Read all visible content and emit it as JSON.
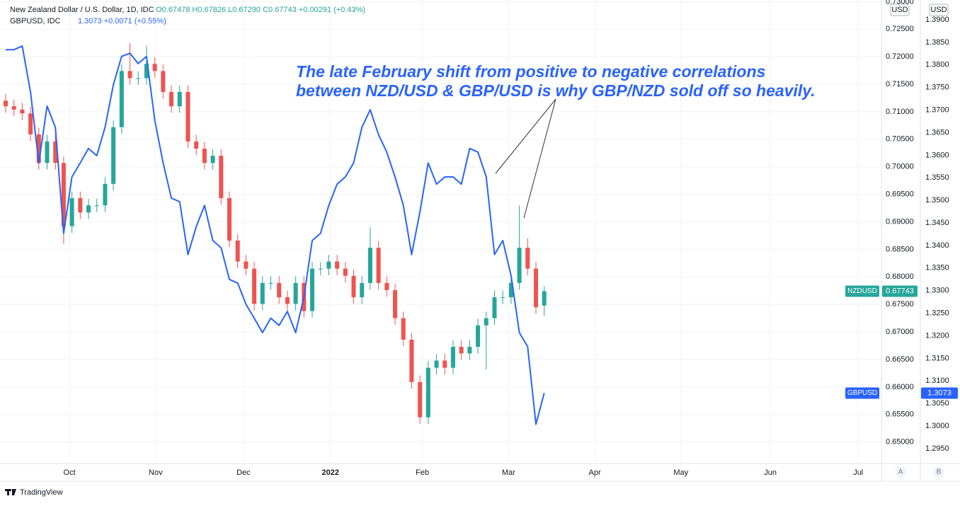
{
  "chart_data": {
    "type": "candlestick",
    "legend": {
      "title": "New Zealand Dollar / U.S. Dollar, 1D, IDC",
      "ohlc": "O0.67478 H0.67826 L0.67290 C0.67743 +0.00291 (+0.43%)",
      "second": "GBPUSD, IDC",
      "second_values": "1.3073 +0.0071 (+0.55%)"
    },
    "annotation": [
      "The late February shift from positive to negative correlations",
      "between NZD/USD & GBP/USD is why GBP/NZD sold off so heavily."
    ],
    "axis_units": [
      "USD",
      "USD"
    ],
    "scale_buttons": [
      "A",
      "B"
    ],
    "brand": "TradingView",
    "xlim": [
      0,
      105.7
    ],
    "xticks": [
      {
        "value": 7.7,
        "label": "Oct"
      },
      {
        "value": 18.1,
        "label": "Nov"
      },
      {
        "value": 28.7,
        "label": "Dec"
      },
      {
        "value": 39.2,
        "label": "2022"
      },
      {
        "value": 50.3,
        "label": "Feb"
      },
      {
        "value": 60.7,
        "label": "Mar"
      },
      {
        "value": 71.1,
        "label": "Apr"
      },
      {
        "value": 81.5,
        "label": "May"
      },
      {
        "value": 92.3,
        "label": "Jun"
      },
      {
        "value": 102.9,
        "label": "Jul"
      }
    ],
    "ylim": [
      0.6461,
      0.7303
    ],
    "yticks": [
      {
        "value": 0.65,
        "label": "0.65000"
      },
      {
        "value": 0.655,
        "label": "0.65500"
      },
      {
        "value": 0.66,
        "label": "0.66000"
      },
      {
        "value": 0.665,
        "label": "0.66500"
      },
      {
        "value": 0.67,
        "label": "0.67000"
      },
      {
        "value": 0.675,
        "label": "0.67500"
      },
      {
        "value": 0.68,
        "label": "0.68000"
      },
      {
        "value": 0.685,
        "label": "0.68500"
      },
      {
        "value": 0.69,
        "label": "0.69000"
      },
      {
        "value": 0.695,
        "label": "0.69500"
      },
      {
        "value": 0.7,
        "label": "0.70000"
      },
      {
        "value": 0.705,
        "label": "0.70500"
      },
      {
        "value": 0.71,
        "label": "0.71000"
      },
      {
        "value": 0.715,
        "label": "0.71500"
      },
      {
        "value": 0.72,
        "label": "0.72000"
      },
      {
        "value": 0.725,
        "label": "0.72500"
      },
      {
        "value": 0.73,
        "label": "0.73000"
      }
    ],
    "y2lim": [
      1.2917,
      1.3944
    ],
    "y2ticks": [
      {
        "value": 1.295,
        "label": "1.2950"
      },
      {
        "value": 1.3,
        "label": "1.3000"
      },
      {
        "value": 1.305,
        "label": "1.3050"
      },
      {
        "value": 1.31,
        "label": "1.3100"
      },
      {
        "value": 1.315,
        "label": "1.3150"
      },
      {
        "value": 1.32,
        "label": "1.3200"
      },
      {
        "value": 1.325,
        "label": "1.3250"
      },
      {
        "value": 1.33,
        "label": "1.3300"
      },
      {
        "value": 1.335,
        "label": "1.3350"
      },
      {
        "value": 1.34,
        "label": "1.3400"
      },
      {
        "value": 1.345,
        "label": "1.3450"
      },
      {
        "value": 1.35,
        "label": "1.3500"
      },
      {
        "value": 1.355,
        "label": "1.3550"
      },
      {
        "value": 1.36,
        "label": "1.3600"
      },
      {
        "value": 1.365,
        "label": "1.3650"
      },
      {
        "value": 1.37,
        "label": "1.3700"
      },
      {
        "value": 1.375,
        "label": "1.3750"
      },
      {
        "value": 1.38,
        "label": "1.3800"
      },
      {
        "value": 1.385,
        "label": "1.3850"
      },
      {
        "value": 1.39,
        "label": "1.3900"
      }
    ],
    "grid": true,
    "series": [
      {
        "name": "NZDUSD",
        "type": "candlestick",
        "up_color": "#26a69a",
        "down_color": "#ef5350",
        "price_label": "0.67743",
        "open": [
          0.712,
          0.711,
          0.7104,
          0.7097,
          0.7059,
          0.7007,
          0.7046,
          0.7007,
          0.6892,
          0.6943,
          0.6917,
          0.693,
          0.693,
          0.6969,
          0.7072,
          0.7174,
          0.7161,
          0.7161,
          0.7187,
          0.7174,
          0.7136,
          0.711,
          0.7136,
          0.7046,
          0.7033,
          0.7007,
          0.702,
          0.6943,
          0.6866,
          0.6828,
          0.6815,
          0.6751,
          0.6789,
          0.6789,
          0.6763,
          0.6751,
          0.6789,
          0.6738,
          0.6815,
          0.6815,
          0.6828,
          0.6815,
          0.6802,
          0.6763,
          0.6789,
          0.6853,
          0.6789,
          0.6776,
          0.6725,
          0.6686,
          0.6609,
          0.6545,
          0.6635,
          0.6648,
          0.6635,
          0.6673,
          0.6661,
          0.6673,
          0.6712,
          0.6725,
          0.6763,
          0.6763,
          0.6789,
          0.6853,
          0.6815,
          0.6748
        ],
        "high": [
          0.7132,
          0.7122,
          0.7116,
          0.7109,
          0.7071,
          0.7058,
          0.7058,
          0.7019,
          0.6955,
          0.6955,
          0.6942,
          0.6942,
          0.6981,
          0.7084,
          0.7186,
          0.7225,
          0.7173,
          0.722,
          0.7199,
          0.7186,
          0.7148,
          0.7148,
          0.7148,
          0.7058,
          0.7045,
          0.7032,
          0.7032,
          0.6955,
          0.6878,
          0.684,
          0.6827,
          0.6801,
          0.6801,
          0.6801,
          0.6775,
          0.6801,
          0.6801,
          0.6827,
          0.6827,
          0.684,
          0.684,
          0.6827,
          0.6814,
          0.6801,
          0.689,
          0.6865,
          0.6801,
          0.6788,
          0.6737,
          0.6698,
          0.6621,
          0.6647,
          0.666,
          0.666,
          0.6685,
          0.6685,
          0.6685,
          0.6724,
          0.6737,
          0.6775,
          0.6775,
          0.6801,
          0.693,
          0.687,
          0.6827,
          0.6783
        ],
        "low": [
          0.7098,
          0.7092,
          0.7085,
          0.7047,
          0.6995,
          0.6995,
          0.6995,
          0.686,
          0.688,
          0.6905,
          0.6905,
          0.6918,
          0.6918,
          0.6957,
          0.706,
          0.7149,
          0.7149,
          0.7149,
          0.7162,
          0.7124,
          0.7098,
          0.7098,
          0.7034,
          0.7021,
          0.6995,
          0.6995,
          0.6931,
          0.6854,
          0.6816,
          0.6803,
          0.6739,
          0.6739,
          0.6777,
          0.6751,
          0.6739,
          0.6739,
          0.6726,
          0.6726,
          0.6803,
          0.6803,
          0.6803,
          0.679,
          0.6751,
          0.6751,
          0.6777,
          0.6777,
          0.6764,
          0.6713,
          0.6674,
          0.6597,
          0.6533,
          0.6533,
          0.6623,
          0.6623,
          0.6623,
          0.6649,
          0.6649,
          0.6661,
          0.6632,
          0.6713,
          0.6751,
          0.6751,
          0.6777,
          0.6803,
          0.6733,
          0.6729
        ],
        "close": [
          0.711,
          0.7104,
          0.7097,
          0.7059,
          0.7007,
          0.7046,
          0.7007,
          0.6892,
          0.6943,
          0.6917,
          0.693,
          0.693,
          0.6969,
          0.7072,
          0.7174,
          0.7161,
          0.7161,
          0.7187,
          0.7174,
          0.7136,
          0.711,
          0.7136,
          0.7046,
          0.7033,
          0.7007,
          0.702,
          0.6943,
          0.6866,
          0.6828,
          0.6815,
          0.6751,
          0.6789,
          0.6789,
          0.6763,
          0.6751,
          0.6789,
          0.6738,
          0.6815,
          0.6815,
          0.6828,
          0.6815,
          0.6802,
          0.6763,
          0.6789,
          0.6853,
          0.6789,
          0.6776,
          0.6725,
          0.6686,
          0.6609,
          0.6545,
          0.6635,
          0.6648,
          0.6635,
          0.6673,
          0.6661,
          0.6673,
          0.6712,
          0.6725,
          0.6763,
          0.6763,
          0.6789,
          0.6853,
          0.6815,
          0.6745,
          0.6774
        ]
      },
      {
        "name": "GBPUSD",
        "type": "line",
        "axis": "y2",
        "color": "#2962ff",
        "price_label": "1.3073",
        "values": [
          1.3834,
          1.3834,
          1.3842,
          1.374,
          1.3583,
          1.3709,
          1.3662,
          1.3427,
          1.3552,
          1.3583,
          1.3615,
          1.3599,
          1.3662,
          1.3756,
          1.3819,
          1.3826,
          1.3803,
          1.3819,
          1.3677,
          1.3583,
          1.3505,
          1.3497,
          1.338,
          1.3442,
          1.3489,
          1.3411,
          1.3395,
          1.3325,
          1.3317,
          1.327,
          1.3239,
          1.3207,
          1.3239,
          1.3223,
          1.3254,
          1.3207,
          1.3286,
          1.3411,
          1.3427,
          1.3489,
          1.3536,
          1.3552,
          1.3583,
          1.3662,
          1.3701,
          1.3646,
          1.3607,
          1.3552,
          1.3489,
          1.338,
          1.3474,
          1.3583,
          1.3536,
          1.3552,
          1.3552,
          1.3536,
          1.3615,
          1.3607,
          1.3552,
          1.338,
          1.3411,
          1.3333,
          1.3207,
          1.3176,
          1.3004,
          1.3073
        ]
      }
    ]
  }
}
